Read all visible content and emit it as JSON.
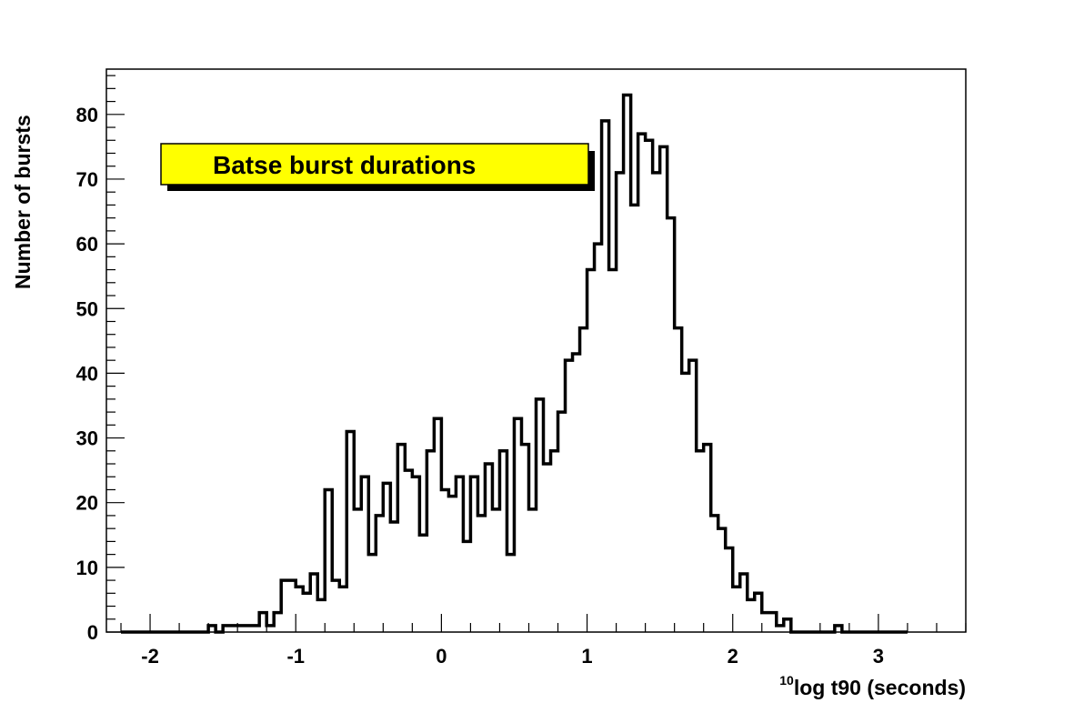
{
  "chart_data": {
    "type": "histogram",
    "title": "Batse burst durations",
    "xlabel_sup": "10",
    "xlabel": "log t90  (seconds)",
    "ylabel": "Number of bursts",
    "xlim": [
      -2.3,
      3.6
    ],
    "ylim": [
      0,
      87
    ],
    "bin_start": -2.2,
    "bin_width": 0.05,
    "xticks": [
      -2,
      -1,
      0,
      1,
      2,
      3
    ],
    "xtick_labels": [
      "-2",
      "-1",
      "0",
      "1",
      "2",
      "3"
    ],
    "yticks": [
      0,
      10,
      20,
      30,
      40,
      50,
      60,
      70,
      80
    ],
    "ytick_labels": [
      "0",
      "10",
      "20",
      "30",
      "40",
      "50",
      "60",
      "70",
      "80"
    ],
    "values": [
      0,
      0,
      0,
      0,
      0,
      0,
      0,
      0,
      0,
      0,
      0,
      0,
      1,
      0,
      1,
      1,
      1,
      1,
      1,
      3,
      1,
      3,
      8,
      8,
      7,
      6,
      9,
      5,
      22,
      8,
      7,
      31,
      19,
      24,
      12,
      18,
      23,
      17,
      29,
      25,
      24,
      15,
      28,
      33,
      22,
      21,
      24,
      14,
      24,
      18,
      26,
      19,
      28,
      12,
      33,
      29,
      19,
      36,
      26,
      28,
      34,
      42,
      43,
      47,
      56,
      60,
      79,
      56,
      71,
      83,
      66,
      77,
      76,
      71,
      75,
      64,
      47,
      40,
      42,
      28,
      29,
      18,
      16,
      13,
      7,
      9,
      5,
      6,
      3,
      3,
      1,
      2,
      0,
      0,
      0,
      0,
      0,
      0,
      1,
      0,
      0,
      0,
      0,
      0,
      0,
      0,
      0,
      0
    ],
    "colors": {
      "line": "#000000",
      "title_box": "#ffff00",
      "title_shadow": "#000000",
      "background": "#ffffff"
    },
    "grid": false,
    "legend": "none"
  }
}
